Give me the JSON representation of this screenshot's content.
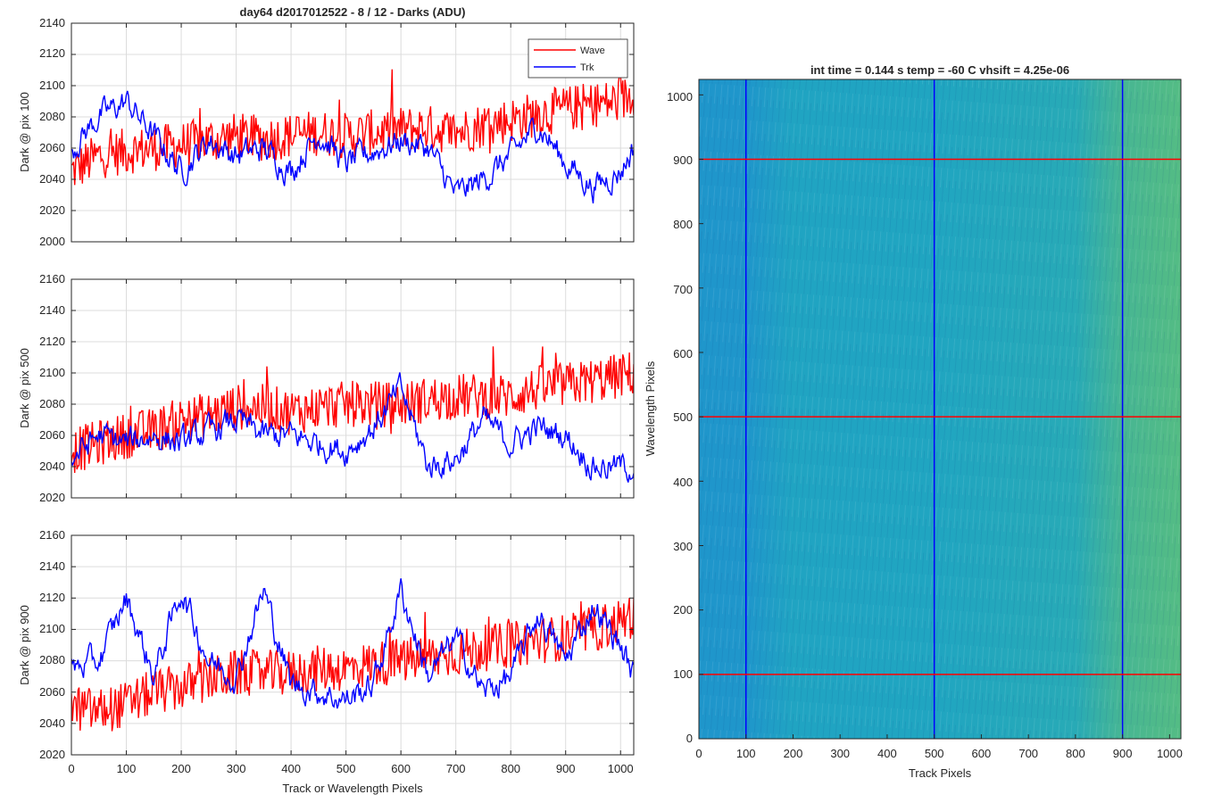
{
  "figure": {
    "title": "day64 d2017012522 - 8 / 12 - Darks (ADU)",
    "xlabel": "Track or Wavelength Pixels"
  },
  "legend": {
    "items": [
      {
        "label": "Wave",
        "color": "#ff0000"
      },
      {
        "label": "Trk",
        "color": "#0000ff"
      }
    ]
  },
  "chart_data": [
    {
      "type": "line",
      "ylabel": "Dark @ pix 100",
      "xlim": [
        0,
        1024
      ],
      "ylim": [
        2000,
        2140
      ],
      "xticks": [
        "0",
        "100",
        "200",
        "300",
        "400",
        "500",
        "600",
        "700",
        "800",
        "900",
        "1000"
      ],
      "yticks": [
        "2000",
        "2020",
        "2040",
        "2060",
        "2080",
        "2100",
        "2120",
        "2140"
      ],
      "grid": true,
      "legend_position": "top-right",
      "series": [
        {
          "name": "Wave",
          "color": "#ff0000",
          "x": [
            0,
            50,
            100,
            150,
            200,
            250,
            300,
            350,
            400,
            450,
            500,
            550,
            600,
            650,
            700,
            750,
            800,
            850,
            900,
            950,
            1000,
            1024
          ],
          "y": [
            2045,
            2055,
            2058,
            2060,
            2062,
            2065,
            2068,
            2066,
            2068,
            2070,
            2068,
            2070,
            2072,
            2073,
            2070,
            2075,
            2078,
            2082,
            2085,
            2088,
            2090,
            2095
          ]
        },
        {
          "name": "Trk",
          "color": "#0000ff",
          "x": [
            0,
            50,
            100,
            150,
            200,
            250,
            300,
            350,
            400,
            450,
            500,
            550,
            600,
            650,
            700,
            750,
            800,
            850,
            900,
            950,
            1000,
            1024
          ],
          "y": [
            2060,
            2080,
            2090,
            2068,
            2045,
            2065,
            2055,
            2060,
            2045,
            2070,
            2050,
            2058,
            2065,
            2060,
            2030,
            2040,
            2055,
            2075,
            2050,
            2035,
            2045,
            2060
          ]
        }
      ]
    },
    {
      "type": "line",
      "ylabel": "Dark @ pix 500",
      "xlim": [
        0,
        1024
      ],
      "ylim": [
        2020,
        2160
      ],
      "xticks": [
        "",
        "",
        "",
        "",
        "",
        "",
        "",
        "",
        "",
        "",
        ""
      ],
      "yticks": [
        "2020",
        "2040",
        "2060",
        "2080",
        "2100",
        "2120",
        "2140",
        "2160"
      ],
      "grid": true,
      "series": [
        {
          "name": "Wave",
          "color": "#ff0000",
          "x": [
            0,
            50,
            100,
            150,
            200,
            250,
            300,
            350,
            400,
            450,
            500,
            550,
            600,
            650,
            700,
            750,
            800,
            850,
            900,
            950,
            1000,
            1024
          ],
          "y": [
            2050,
            2055,
            2060,
            2063,
            2070,
            2073,
            2078,
            2078,
            2075,
            2078,
            2080,
            2080,
            2080,
            2083,
            2085,
            2085,
            2085,
            2090,
            2092,
            2095,
            2098,
            2100
          ]
        },
        {
          "name": "Trk",
          "color": "#0000ff",
          "x": [
            0,
            50,
            100,
            150,
            200,
            250,
            300,
            350,
            400,
            450,
            500,
            550,
            600,
            650,
            700,
            750,
            800,
            850,
            900,
            950,
            1000,
            1024
          ],
          "y": [
            2045,
            2060,
            2055,
            2060,
            2055,
            2062,
            2070,
            2060,
            2060,
            2055,
            2050,
            2065,
            2090,
            2040,
            2045,
            2070,
            2055,
            2065,
            2060,
            2040,
            2040,
            2040
          ]
        }
      ]
    },
    {
      "type": "line",
      "ylabel": "Dark @ pix 900",
      "xlim": [
        0,
        1024
      ],
      "ylim": [
        2020,
        2160
      ],
      "xticks": [
        "0",
        "100",
        "200",
        "300",
        "400",
        "500",
        "600",
        "700",
        "800",
        "900",
        "1000"
      ],
      "yticks": [
        "2020",
        "2040",
        "2060",
        "2080",
        "2100",
        "2120",
        "2140",
        "2160"
      ],
      "grid": true,
      "series": [
        {
          "name": "Wave",
          "color": "#ff0000",
          "x": [
            0,
            50,
            100,
            150,
            200,
            250,
            300,
            350,
            400,
            450,
            500,
            550,
            600,
            650,
            700,
            750,
            800,
            850,
            900,
            950,
            1000,
            1024
          ],
          "y": [
            2050,
            2048,
            2052,
            2060,
            2063,
            2068,
            2072,
            2072,
            2072,
            2075,
            2075,
            2078,
            2080,
            2082,
            2085,
            2088,
            2090,
            2093,
            2095,
            2100,
            2105,
            2110
          ]
        },
        {
          "name": "Trk",
          "color": "#0000ff",
          "x": [
            0,
            50,
            100,
            150,
            200,
            250,
            300,
            350,
            400,
            450,
            500,
            550,
            600,
            650,
            700,
            750,
            800,
            850,
            900,
            950,
            1000,
            1024
          ],
          "y": [
            2075,
            2080,
            2120,
            2070,
            2125,
            2080,
            2070,
            2125,
            2065,
            2060,
            2055,
            2065,
            2125,
            2070,
            2095,
            2060,
            2070,
            2110,
            2080,
            2115,
            2090,
            2070
          ]
        }
      ]
    },
    {
      "type": "heatmap",
      "title": "int time = 0.144 s   temp = -60 C   vhsift = 4.25e-06",
      "xlabel": "Track Pixels",
      "ylabel": "Wavelength Pixels",
      "xlim": [
        0,
        1024
      ],
      "ylim": [
        0,
        1024
      ],
      "xticks": [
        "0",
        "100",
        "200",
        "300",
        "400",
        "500",
        "600",
        "700",
        "800",
        "900",
        "1000"
      ],
      "yticks": [
        "0",
        "100",
        "200",
        "300",
        "400",
        "500",
        "600",
        "700",
        "800",
        "900",
        "1000"
      ],
      "colormap": [
        "#1f8fd0",
        "#20a6c0",
        "#5cbf7a",
        "#c9bd46"
      ],
      "gradient_profile": [
        [
          0,
          0.1
        ],
        [
          100,
          0.1
        ],
        [
          200,
          0.3
        ],
        [
          500,
          0.32
        ],
        [
          800,
          0.38
        ],
        [
          900,
          0.55
        ],
        [
          1024,
          0.62
        ]
      ],
      "marker_lines": {
        "vertical": {
          "color": "#0000ff",
          "x": [
            100,
            500,
            900
          ]
        },
        "horizontal": {
          "color": "#ff0000",
          "y": [
            100,
            500,
            900
          ]
        }
      }
    }
  ]
}
